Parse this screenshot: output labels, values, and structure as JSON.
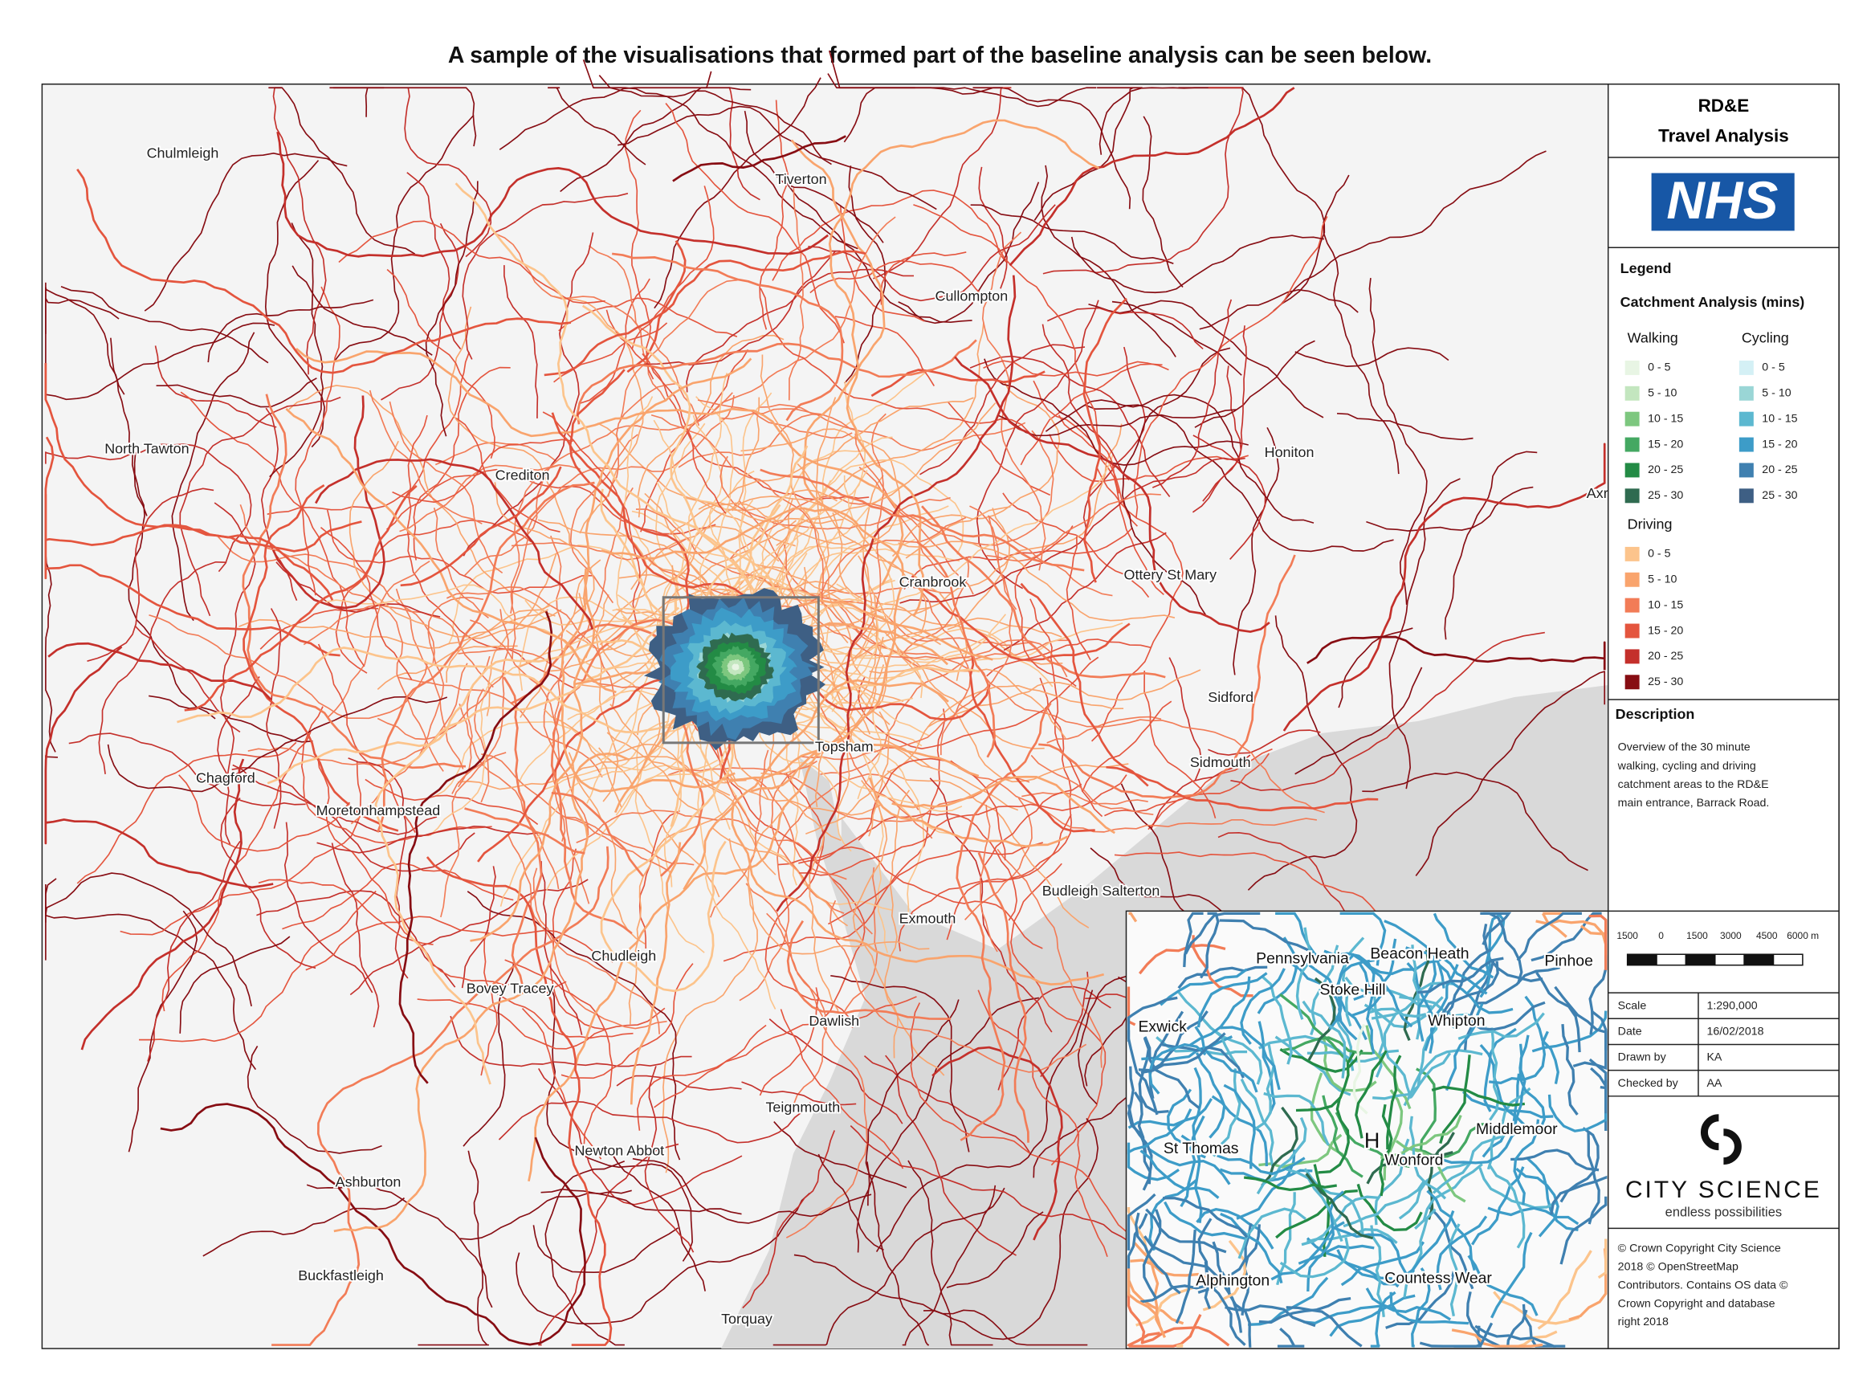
{
  "title": "A sample of the visualisations that formed part of the baseline analysis can be seen below.",
  "map": {
    "places": [
      "Chulmleigh",
      "Tiverton",
      "Cullompton",
      "North Tawton",
      "Crediton",
      "Honiton",
      "Axr",
      "Cranbrook",
      "Ottery St Mary",
      "Sidford",
      "Topsham",
      "Sidmouth",
      "Chagford",
      "Moretonhampstead",
      "Budleigh Salterton",
      "Exmouth",
      "Chudleigh",
      "Bovey Tracey",
      "Dawlish",
      "Teignmouth",
      "Newton Abbot",
      "Ashburton",
      "Buckfastleigh",
      "Torquay"
    ]
  },
  "inset": {
    "places": [
      "Pennsylvania",
      "Beacon Heath",
      "Pinhoe",
      "Stoke Hill",
      "Exwick",
      "Whipton",
      "Middlemoor",
      "St Thomas",
      "H",
      "Wonford",
      "Alphington",
      "Countess Wear"
    ]
  },
  "panel": {
    "heading": [
      "RD&E",
      "Travel Analysis"
    ],
    "logo": "NHS",
    "legend": {
      "title": "Legend",
      "subtitle": "Catchment Analysis (mins)",
      "groups": [
        {
          "name": "Walking",
          "items": [
            {
              "label": "0 - 5",
              "color": "#e8f5e4"
            },
            {
              "label": "5 - 10",
              "color": "#c3e6bf"
            },
            {
              "label": "10 - 15",
              "color": "#7dc77f"
            },
            {
              "label": "15 - 20",
              "color": "#44a862"
            },
            {
              "label": "20 - 25",
              "color": "#238b45"
            },
            {
              "label": "25 - 30",
              "color": "#2f6b50"
            }
          ]
        },
        {
          "name": "Cycling",
          "items": [
            {
              "label": "0 - 5",
              "color": "#d4f0f5"
            },
            {
              "label": "5 - 10",
              "color": "#9ad6d6"
            },
            {
              "label": "10 - 15",
              "color": "#5cb8d0"
            },
            {
              "label": "15 - 20",
              "color": "#3d9cc8"
            },
            {
              "label": "20 - 25",
              "color": "#3f80b0"
            },
            {
              "label": "25 - 30",
              "color": "#3e5f84"
            }
          ]
        },
        {
          "name": "Driving",
          "items": [
            {
              "label": "0 - 5",
              "color": "#fcc48c"
            },
            {
              "label": "5 - 10",
              "color": "#f9a46d"
            },
            {
              "label": "10 - 15",
              "color": "#f27c57"
            },
            {
              "label": "15 - 20",
              "color": "#e4553e"
            },
            {
              "label": "20 - 25",
              "color": "#c4302b"
            },
            {
              "label": "25 - 30",
              "color": "#870d13"
            }
          ]
        }
      ]
    },
    "description": {
      "title": "Description",
      "lines": [
        "Overview of the 30 minute",
        "walking, cycling and driving",
        "catchment areas to the RD&E",
        "main entrance, Barrack Road."
      ]
    },
    "scalebar": [
      "1500",
      "0",
      "1500",
      "3000",
      "4500",
      "6000 m"
    ],
    "info": [
      [
        "Scale",
        "1:290,000"
      ],
      [
        "Date",
        "16/02/2018"
      ],
      [
        "Drawn by",
        "KA"
      ],
      [
        "Checked by",
        "AA"
      ]
    ],
    "brand": {
      "name": "CITY SCIENCE",
      "tagline": "endless possibilities"
    },
    "copyright": [
      "© Crown Copyright City Science",
      "2018 © OpenStreetMap",
      "Contributors. Contains OS data ©",
      "Crown Copyright and database",
      "right 2018"
    ]
  }
}
